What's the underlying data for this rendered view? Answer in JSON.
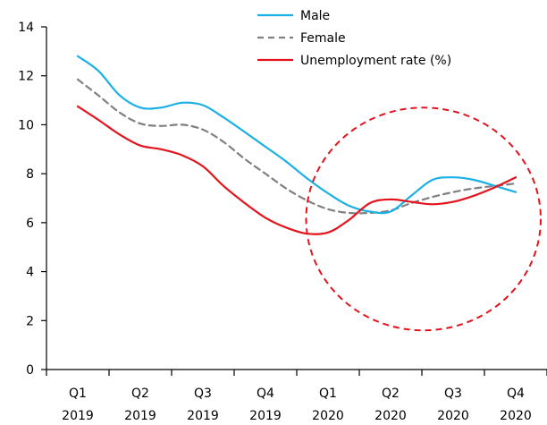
{
  "chart_data": {
    "type": "line",
    "categories": [
      [
        "Q1",
        "2019"
      ],
      [
        "Q2",
        "2019"
      ],
      [
        "Q3",
        "2019"
      ],
      [
        "Q4",
        "2019"
      ],
      [
        "Q1",
        "2020"
      ],
      [
        "Q2",
        "2020"
      ],
      [
        "Q3",
        "2020"
      ],
      [
        "Q4",
        "2020"
      ]
    ],
    "ylim": [
      0,
      14
    ],
    "yticks": [
      "0",
      "2",
      "4",
      "6",
      "8",
      "10",
      "12",
      "14"
    ],
    "grid": false,
    "legend_position": "top-center",
    "series": [
      {
        "name": "Male",
        "color": "#1ab0e6",
        "dash": "solid",
        "x": [
          0,
          0.33,
          0.67,
          1,
          1.33,
          1.67,
          2,
          2.33,
          2.67,
          3,
          3.33,
          3.67,
          4,
          4.33,
          4.67,
          5,
          5.33,
          5.67,
          6,
          6.33,
          6.67,
          7
        ],
        "values": [
          12.8,
          12.2,
          11.2,
          10.7,
          10.7,
          10.9,
          10.8,
          10.3,
          9.7,
          9.1,
          8.5,
          7.8,
          7.2,
          6.7,
          6.45,
          6.45,
          7.1,
          7.75,
          7.85,
          7.75,
          7.5,
          7.25
        ]
      },
      {
        "name": "Female",
        "color": "#808080",
        "dash": "dashed",
        "x": [
          0,
          0.33,
          0.67,
          1,
          1.33,
          1.67,
          2,
          2.33,
          2.67,
          3,
          3.33,
          3.67,
          4,
          4.33,
          4.67,
          5,
          5.33,
          5.67,
          6,
          6.33,
          6.67,
          7
        ],
        "values": [
          11.85,
          11.2,
          10.5,
          10.05,
          9.95,
          10.0,
          9.8,
          9.3,
          8.6,
          8.0,
          7.4,
          6.9,
          6.55,
          6.4,
          6.4,
          6.5,
          6.8,
          7.05,
          7.25,
          7.4,
          7.5,
          7.6
        ]
      },
      {
        "name": "Unemployment rate (%)",
        "color": "#e3141d",
        "dash": "solid",
        "x": [
          0,
          0.33,
          0.67,
          1,
          1.33,
          1.67,
          2,
          2.33,
          2.67,
          3,
          3.33,
          3.67,
          4,
          4.33,
          4.67,
          5,
          5.33,
          5.67,
          6,
          6.33,
          6.67,
          7
        ],
        "values": [
          10.75,
          10.2,
          9.6,
          9.15,
          9.0,
          8.75,
          8.3,
          7.5,
          6.8,
          6.2,
          5.8,
          5.55,
          5.6,
          6.1,
          6.8,
          6.95,
          6.85,
          6.75,
          6.85,
          7.1,
          7.45,
          7.85
        ]
      }
    ],
    "annotation": {
      "shape": "dashed-ellipse",
      "color": "#e3141d",
      "x_range": [
        3.65,
        7.4
      ],
      "y_range": [
        1.6,
        10.7
      ]
    }
  }
}
